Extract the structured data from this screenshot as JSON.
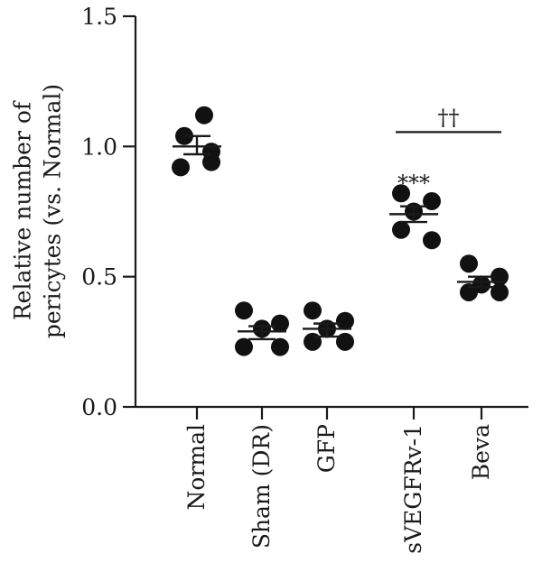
{
  "chart_data": {
    "type": "scatter",
    "ylabel_lines": [
      "Relative number of",
      "pericytes (vs. Normal)"
    ],
    "xlabel": "",
    "ylim": [
      0,
      1.5
    ],
    "yticks": [
      "0.0",
      "0.5",
      "1.0",
      "1.5"
    ],
    "ytick_values": [
      0,
      0.5,
      1.0,
      1.5
    ],
    "grid": false,
    "categories": [
      "Normal",
      "Sham (DR)",
      "GFP",
      "sVEGFRv-1",
      "Beva"
    ],
    "groups": [
      {
        "name": "Normal",
        "points": [
          1.12,
          1.04,
          0.98,
          0.92,
          0.94
        ],
        "mean": 1.0,
        "sem_low": 0.97,
        "sem_high": 1.04
      },
      {
        "name": "Sham (DR)",
        "points": [
          0.37,
          0.32,
          0.3,
          0.23,
          0.23
        ],
        "mean": 0.29,
        "sem_low": 0.26,
        "sem_high": 0.31
      },
      {
        "name": "GFP",
        "points": [
          0.37,
          0.33,
          0.3,
          0.25,
          0.25
        ],
        "mean": 0.3,
        "sem_low": 0.27,
        "sem_high": 0.32
      },
      {
        "name": "sVEGFRv-1",
        "points": [
          0.82,
          0.79,
          0.75,
          0.68,
          0.64
        ],
        "mean": 0.74,
        "sem_low": 0.71,
        "sem_high": 0.77
      },
      {
        "name": "Beva",
        "points": [
          0.55,
          0.5,
          0.47,
          0.44,
          0.44
        ],
        "mean": 0.48,
        "sem_low": 0.46,
        "sem_high": 0.5
      }
    ],
    "annotations": [
      {
        "text": "***",
        "group": "sVEGFRv-1",
        "y": 0.88
      },
      {
        "text": "††",
        "from": "sVEGFRv-1",
        "to": "Beva",
        "y": 1.09
      }
    ],
    "colors": {
      "points": "#111111",
      "axis": "#1a1a1a"
    }
  }
}
